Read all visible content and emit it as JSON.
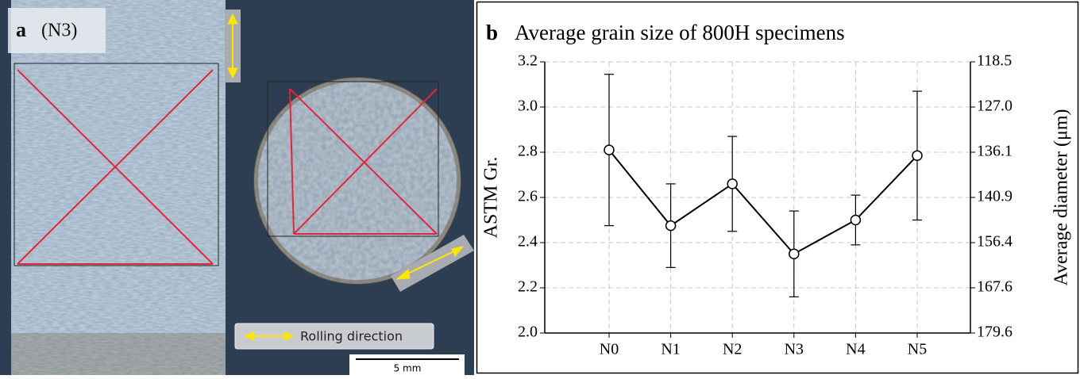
{
  "panel_a": {
    "label": "a",
    "specimen": "(N3)",
    "legend": "Rolling direction",
    "scale_bar": "5 mm"
  },
  "chart_data": {
    "type": "line",
    "panel_label": "b",
    "title": "Average grain size of 800H specimens",
    "y_label": "ASTM Gr.",
    "y2_label": "Average diameter (μm)",
    "categories": [
      "N0",
      "N1",
      "N2",
      "N3",
      "N4",
      "N5"
    ],
    "values": [
      2.81,
      2.475,
      2.66,
      2.35,
      2.5,
      2.785
    ],
    "errors": [
      0.335,
      0.185,
      0.21,
      0.19,
      0.11,
      0.285
    ],
    "color": "#000000",
    "ylim": [
      2.0,
      3.2
    ],
    "yticks": [
      {
        "value": 2,
        "label": "2.0"
      },
      2.2,
      2.4,
      2.6,
      2.8,
      {
        "value": 3,
        "label": "3.0"
      },
      3.2
    ],
    "y2lim": [
      179.6,
      118.5
    ],
    "y2ticks": [
      179.6,
      167.6,
      156.4,
      140.9,
      136.1,
      {
        "value": 127,
        "label": "127.0"
      },
      118.5
    ],
    "grid": true
  }
}
